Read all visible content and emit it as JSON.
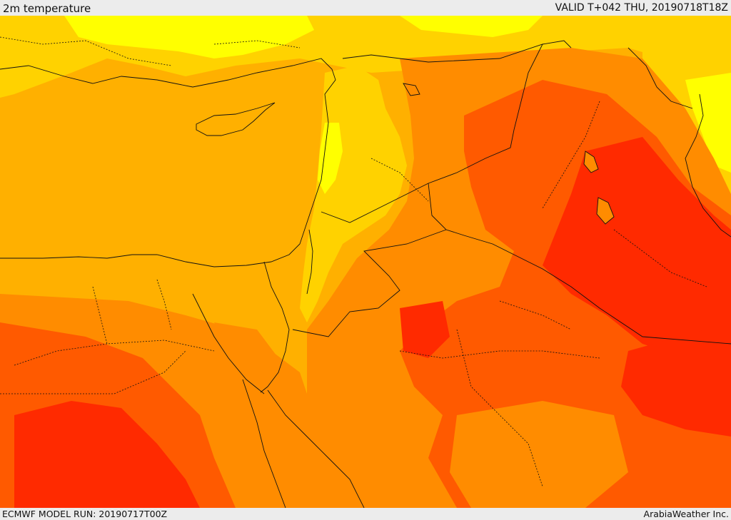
{
  "header": {
    "title": "2m temperature",
    "valid": "VALID T+042 THU, 20190718T18Z"
  },
  "footer": {
    "model_run": "ECMWF MODEL RUN: 20190717T00Z",
    "credit": "ArabiaWeather Inc."
  },
  "map": {
    "variable": "2m temperature",
    "region": "Eastern Mediterranean, Levant, Iraq, Egypt, Northern Arabia",
    "colors": {
      "coolest": "#ffff00",
      "cool": "#ffd200",
      "mild": "#ffb000",
      "warm": "#ff8c00",
      "hot": "#ff5a00",
      "hottest": "#ff2a00",
      "border": "#111111"
    }
  }
}
